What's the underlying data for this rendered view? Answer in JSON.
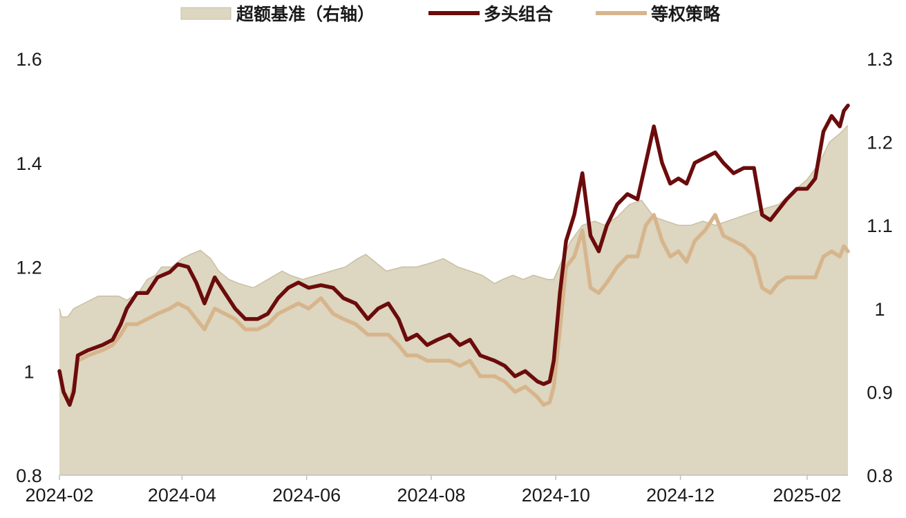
{
  "chart_data": {
    "type": "line",
    "title": "",
    "xlabel": "",
    "ylabel": "",
    "x_ticks": [
      "2024-02",
      "2024-04",
      "2024-06",
      "2024-08",
      "2024-10",
      "2024-12",
      "2025-02"
    ],
    "y_left": {
      "lim": [
        0.8,
        1.6
      ],
      "ticks": [
        "0.8",
        "1",
        "1.2",
        "1.4",
        "1.6"
      ]
    },
    "y_right": {
      "lim": [
        0.8,
        1.3
      ],
      "ticks": [
        "0.8",
        "0.9",
        "1",
        "1.1",
        "1.2",
        "1.3"
      ]
    },
    "grid": false,
    "legend_position": "top",
    "colors": {
      "benchmark": "#ddd6c0",
      "benchmark_edge": "#c9bfa3",
      "long": "#6b0c0c",
      "equal": "#d7b58c"
    },
    "series": [
      {
        "name": "超额基准（右轴）",
        "kind": "area",
        "axis": "right",
        "points": [
          [
            "2024-02-01",
            1.0
          ],
          [
            "2024-02-02",
            0.99
          ],
          [
            "2024-02-05",
            0.99
          ],
          [
            "2024-02-08",
            1.0
          ],
          [
            "2024-02-20",
            1.015
          ],
          [
            "2024-02-23",
            1.015
          ],
          [
            "2024-03-01",
            1.015
          ],
          [
            "2024-03-05",
            1.01
          ],
          [
            "2024-03-11",
            1.02
          ],
          [
            "2024-03-15",
            1.035
          ],
          [
            "2024-03-19",
            1.04
          ],
          [
            "2024-03-22",
            1.05
          ],
          [
            "2024-03-27",
            1.05
          ],
          [
            "2024-04-01",
            1.06
          ],
          [
            "2024-04-05",
            1.065
          ],
          [
            "2024-04-10",
            1.07
          ],
          [
            "2024-04-15",
            1.06
          ],
          [
            "2024-04-19",
            1.045
          ],
          [
            "2024-04-24",
            1.035
          ],
          [
            "2024-04-29",
            1.03
          ],
          [
            "2024-05-06",
            1.025
          ],
          [
            "2024-05-13",
            1.035
          ],
          [
            "2024-05-20",
            1.045
          ],
          [
            "2024-05-24",
            1.04
          ],
          [
            "2024-05-30",
            1.035
          ],
          [
            "2024-06-06",
            1.04
          ],
          [
            "2024-06-13",
            1.045
          ],
          [
            "2024-06-20",
            1.05
          ],
          [
            "2024-06-26",
            1.06
          ],
          [
            "2024-06-30",
            1.065
          ],
          [
            "2024-07-05",
            1.055
          ],
          [
            "2024-07-10",
            1.045
          ],
          [
            "2024-07-18",
            1.05
          ],
          [
            "2024-07-25",
            1.05
          ],
          [
            "2024-08-01",
            1.055
          ],
          [
            "2024-08-07",
            1.06
          ],
          [
            "2024-08-14",
            1.05
          ],
          [
            "2024-08-20",
            1.045
          ],
          [
            "2024-08-26",
            1.04
          ],
          [
            "2024-09-01",
            1.03
          ],
          [
            "2024-09-05",
            1.035
          ],
          [
            "2024-09-10",
            1.04
          ],
          [
            "2024-09-15",
            1.035
          ],
          [
            "2024-09-20",
            1.04
          ],
          [
            "2024-09-27",
            1.035
          ],
          [
            "2024-09-30",
            1.035
          ],
          [
            "2024-10-08",
            1.08
          ],
          [
            "2024-10-14",
            1.1
          ],
          [
            "2024-10-20",
            1.105
          ],
          [
            "2024-10-25",
            1.1
          ],
          [
            "2024-10-31",
            1.11
          ],
          [
            "2024-11-06",
            1.125
          ],
          [
            "2024-11-12",
            1.13
          ],
          [
            "2024-11-18",
            1.11
          ],
          [
            "2024-11-24",
            1.105
          ],
          [
            "2024-11-30",
            1.1
          ],
          [
            "2024-12-06",
            1.1
          ],
          [
            "2024-12-12",
            1.105
          ],
          [
            "2024-12-18",
            1.1
          ],
          [
            "2024-12-24",
            1.105
          ],
          [
            "2024-12-30",
            1.11
          ],
          [
            "2025-01-05",
            1.115
          ],
          [
            "2025-01-11",
            1.12
          ],
          [
            "2025-01-18",
            1.125
          ],
          [
            "2025-01-25",
            1.14
          ],
          [
            "2025-02-01",
            1.155
          ],
          [
            "2025-02-07",
            1.175
          ],
          [
            "2025-02-12",
            1.2
          ],
          [
            "2025-02-17",
            1.21
          ],
          [
            "2025-02-21",
            1.22
          ]
        ]
      },
      {
        "name": "多头组合",
        "kind": "line",
        "axis": "left",
        "points": [
          [
            "2024-02-01",
            1.0
          ],
          [
            "2024-02-03",
            0.96
          ],
          [
            "2024-02-06",
            0.935
          ],
          [
            "2024-02-08",
            0.96
          ],
          [
            "2024-02-10",
            1.03
          ],
          [
            "2024-02-15",
            1.04
          ],
          [
            "2024-02-22",
            1.05
          ],
          [
            "2024-02-27",
            1.06
          ],
          [
            "2024-03-02",
            1.09
          ],
          [
            "2024-03-05",
            1.12
          ],
          [
            "2024-03-10",
            1.15
          ],
          [
            "2024-03-15",
            1.15
          ],
          [
            "2024-03-20",
            1.18
          ],
          [
            "2024-03-26",
            1.19
          ],
          [
            "2024-03-30",
            1.205
          ],
          [
            "2024-04-04",
            1.2
          ],
          [
            "2024-04-08",
            1.17
          ],
          [
            "2024-04-12",
            1.13
          ],
          [
            "2024-04-17",
            1.18
          ],
          [
            "2024-04-22",
            1.15
          ],
          [
            "2024-04-27",
            1.12
          ],
          [
            "2024-05-02",
            1.1
          ],
          [
            "2024-05-08",
            1.1
          ],
          [
            "2024-05-13",
            1.11
          ],
          [
            "2024-05-18",
            1.14
          ],
          [
            "2024-05-23",
            1.16
          ],
          [
            "2024-05-28",
            1.17
          ],
          [
            "2024-06-02",
            1.16
          ],
          [
            "2024-06-08",
            1.165
          ],
          [
            "2024-06-14",
            1.16
          ],
          [
            "2024-06-19",
            1.14
          ],
          [
            "2024-06-25",
            1.13
          ],
          [
            "2024-07-01",
            1.1
          ],
          [
            "2024-07-06",
            1.12
          ],
          [
            "2024-07-11",
            1.13
          ],
          [
            "2024-07-16",
            1.1
          ],
          [
            "2024-07-20",
            1.06
          ],
          [
            "2024-07-25",
            1.07
          ],
          [
            "2024-07-30",
            1.05
          ],
          [
            "2024-08-04",
            1.06
          ],
          [
            "2024-08-10",
            1.07
          ],
          [
            "2024-08-15",
            1.05
          ],
          [
            "2024-08-20",
            1.06
          ],
          [
            "2024-08-25",
            1.03
          ],
          [
            "2024-09-01",
            1.02
          ],
          [
            "2024-09-06",
            1.01
          ],
          [
            "2024-09-11",
            0.99
          ],
          [
            "2024-09-16",
            1.0
          ],
          [
            "2024-09-22",
            0.98
          ],
          [
            "2024-09-25",
            0.975
          ],
          [
            "2024-09-28",
            0.98
          ],
          [
            "2024-09-30",
            1.02
          ],
          [
            "2024-10-03",
            1.15
          ],
          [
            "2024-10-06",
            1.25
          ],
          [
            "2024-10-10",
            1.3
          ],
          [
            "2024-10-14",
            1.38
          ],
          [
            "2024-10-18",
            1.26
          ],
          [
            "2024-10-22",
            1.23
          ],
          [
            "2024-10-26",
            1.28
          ],
          [
            "2024-10-31",
            1.32
          ],
          [
            "2024-11-05",
            1.34
          ],
          [
            "2024-11-10",
            1.33
          ],
          [
            "2024-11-14",
            1.4
          ],
          [
            "2024-11-18",
            1.47
          ],
          [
            "2024-11-22",
            1.4
          ],
          [
            "2024-11-26",
            1.36
          ],
          [
            "2024-11-30",
            1.37
          ],
          [
            "2024-12-04",
            1.36
          ],
          [
            "2024-12-08",
            1.4
          ],
          [
            "2024-12-13",
            1.41
          ],
          [
            "2024-12-18",
            1.42
          ],
          [
            "2024-12-22",
            1.4
          ],
          [
            "2024-12-27",
            1.38
          ],
          [
            "2025-01-01",
            1.39
          ],
          [
            "2025-01-06",
            1.39
          ],
          [
            "2025-01-10",
            1.3
          ],
          [
            "2025-01-14",
            1.29
          ],
          [
            "2025-01-18",
            1.31
          ],
          [
            "2025-01-22",
            1.33
          ],
          [
            "2025-01-27",
            1.35
          ],
          [
            "2025-02-01",
            1.35
          ],
          [
            "2025-02-05",
            1.37
          ],
          [
            "2025-02-09",
            1.46
          ],
          [
            "2025-02-13",
            1.49
          ],
          [
            "2025-02-17",
            1.47
          ],
          [
            "2025-02-19",
            1.5
          ],
          [
            "2025-02-21",
            1.51
          ]
        ]
      },
      {
        "name": "等权策略",
        "kind": "line",
        "axis": "left",
        "points": [
          [
            "2024-02-01",
            1.0
          ],
          [
            "2024-02-03",
            0.96
          ],
          [
            "2024-02-06",
            0.94
          ],
          [
            "2024-02-08",
            0.97
          ],
          [
            "2024-02-10",
            1.02
          ],
          [
            "2024-02-15",
            1.03
          ],
          [
            "2024-02-22",
            1.04
          ],
          [
            "2024-02-27",
            1.05
          ],
          [
            "2024-03-02",
            1.07
          ],
          [
            "2024-03-05",
            1.09
          ],
          [
            "2024-03-10",
            1.09
          ],
          [
            "2024-03-15",
            1.1
          ],
          [
            "2024-03-20",
            1.11
          ],
          [
            "2024-03-26",
            1.12
          ],
          [
            "2024-03-30",
            1.13
          ],
          [
            "2024-04-04",
            1.12
          ],
          [
            "2024-04-08",
            1.1
          ],
          [
            "2024-04-12",
            1.08
          ],
          [
            "2024-04-17",
            1.12
          ],
          [
            "2024-04-22",
            1.11
          ],
          [
            "2024-04-27",
            1.1
          ],
          [
            "2024-05-02",
            1.08
          ],
          [
            "2024-05-08",
            1.08
          ],
          [
            "2024-05-13",
            1.09
          ],
          [
            "2024-05-18",
            1.11
          ],
          [
            "2024-05-23",
            1.12
          ],
          [
            "2024-05-28",
            1.13
          ],
          [
            "2024-06-02",
            1.12
          ],
          [
            "2024-06-08",
            1.14
          ],
          [
            "2024-06-14",
            1.11
          ],
          [
            "2024-06-19",
            1.1
          ],
          [
            "2024-06-25",
            1.09
          ],
          [
            "2024-07-01",
            1.07
          ],
          [
            "2024-07-06",
            1.07
          ],
          [
            "2024-07-11",
            1.07
          ],
          [
            "2024-07-16",
            1.05
          ],
          [
            "2024-07-20",
            1.03
          ],
          [
            "2024-07-25",
            1.03
          ],
          [
            "2024-07-30",
            1.02
          ],
          [
            "2024-08-04",
            1.02
          ],
          [
            "2024-08-10",
            1.02
          ],
          [
            "2024-08-15",
            1.01
          ],
          [
            "2024-08-20",
            1.02
          ],
          [
            "2024-08-25",
            0.99
          ],
          [
            "2024-09-01",
            0.99
          ],
          [
            "2024-09-06",
            0.98
          ],
          [
            "2024-09-11",
            0.96
          ],
          [
            "2024-09-16",
            0.97
          ],
          [
            "2024-09-22",
            0.95
          ],
          [
            "2024-09-25",
            0.935
          ],
          [
            "2024-09-28",
            0.94
          ],
          [
            "2024-09-30",
            0.97
          ],
          [
            "2024-10-03",
            1.08
          ],
          [
            "2024-10-06",
            1.2
          ],
          [
            "2024-10-10",
            1.22
          ],
          [
            "2024-10-14",
            1.27
          ],
          [
            "2024-10-18",
            1.16
          ],
          [
            "2024-10-22",
            1.15
          ],
          [
            "2024-10-26",
            1.17
          ],
          [
            "2024-10-31",
            1.2
          ],
          [
            "2024-11-05",
            1.22
          ],
          [
            "2024-11-10",
            1.22
          ],
          [
            "2024-11-14",
            1.28
          ],
          [
            "2024-11-18",
            1.3
          ],
          [
            "2024-11-22",
            1.25
          ],
          [
            "2024-11-26",
            1.22
          ],
          [
            "2024-11-30",
            1.23
          ],
          [
            "2024-12-04",
            1.21
          ],
          [
            "2024-12-08",
            1.25
          ],
          [
            "2024-12-13",
            1.27
          ],
          [
            "2024-12-18",
            1.3
          ],
          [
            "2024-12-22",
            1.26
          ],
          [
            "2024-12-27",
            1.25
          ],
          [
            "2025-01-01",
            1.24
          ],
          [
            "2025-01-06",
            1.22
          ],
          [
            "2025-01-10",
            1.16
          ],
          [
            "2025-01-14",
            1.15
          ],
          [
            "2025-01-18",
            1.17
          ],
          [
            "2025-01-22",
            1.18
          ],
          [
            "2025-01-27",
            1.18
          ],
          [
            "2025-02-01",
            1.18
          ],
          [
            "2025-02-05",
            1.18
          ],
          [
            "2025-02-09",
            1.22
          ],
          [
            "2025-02-13",
            1.23
          ],
          [
            "2025-02-17",
            1.22
          ],
          [
            "2025-02-19",
            1.24
          ],
          [
            "2025-02-21",
            1.23
          ]
        ]
      }
    ]
  }
}
